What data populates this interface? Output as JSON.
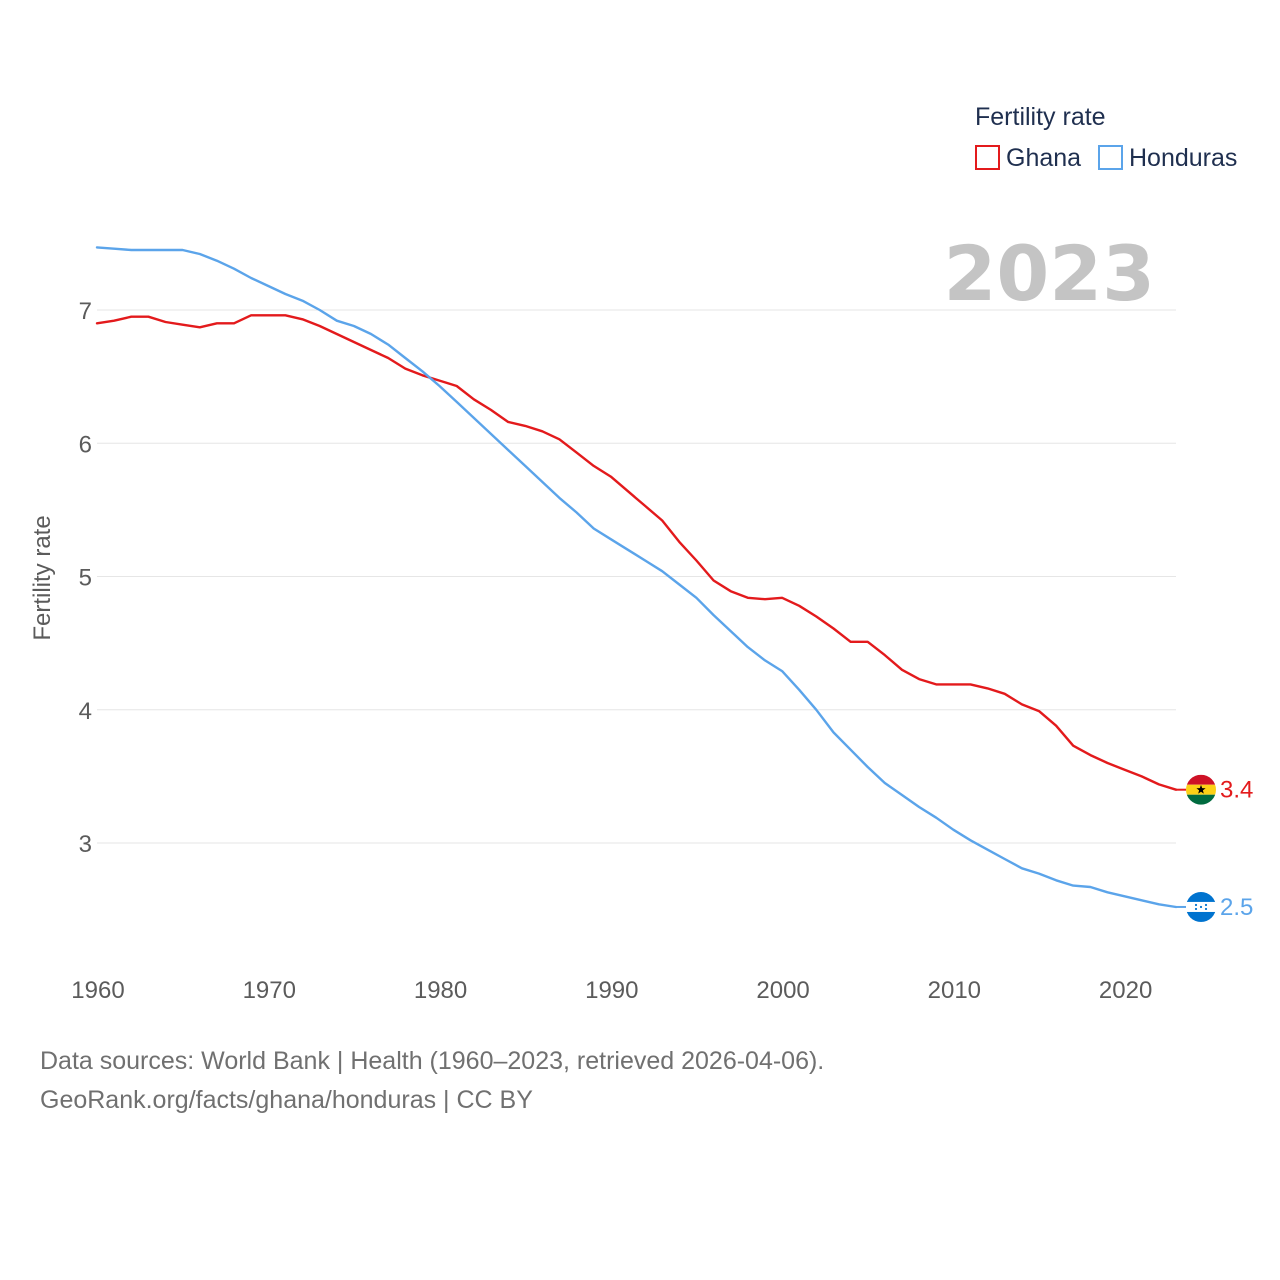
{
  "chart_data": {
    "type": "line",
    "title": "Fertility rate",
    "xlabel": "",
    "ylabel": "Fertility rate",
    "xlim": [
      1960,
      2023
    ],
    "ylim": [
      2.2,
      7.6
    ],
    "yticks": [
      3,
      4,
      5,
      6,
      7
    ],
    "yticks_labels": [
      "3",
      "4",
      "5",
      "6",
      "7"
    ],
    "xticks": [
      1960,
      1970,
      1980,
      1990,
      2000,
      2010,
      2020
    ],
    "xticks_labels": [
      "1960",
      "1970",
      "1980",
      "1990",
      "2000",
      "2010",
      "2020"
    ],
    "grid": true,
    "legend_title": "Fertility rate",
    "year_label": "2023",
    "x": [
      1960,
      1961,
      1962,
      1963,
      1964,
      1965,
      1966,
      1967,
      1968,
      1969,
      1970,
      1971,
      1972,
      1973,
      1974,
      1975,
      1976,
      1977,
      1978,
      1979,
      1980,
      1981,
      1982,
      1983,
      1984,
      1985,
      1986,
      1987,
      1988,
      1989,
      1990,
      1991,
      1992,
      1993,
      1994,
      1995,
      1996,
      1997,
      1998,
      1999,
      2000,
      2001,
      2002,
      2003,
      2004,
      2005,
      2006,
      2007,
      2008,
      2009,
      2010,
      2011,
      2012,
      2013,
      2014,
      2015,
      2016,
      2017,
      2018,
      2019,
      2020,
      2021,
      2022,
      2023
    ],
    "series": [
      {
        "name": "Ghana",
        "color": "#e31a1c",
        "end_label": "3.4",
        "flag": "ghana-flag",
        "values": [
          6.9,
          6.92,
          6.95,
          6.95,
          6.91,
          6.89,
          6.87,
          6.9,
          6.9,
          6.96,
          6.96,
          6.96,
          6.93,
          6.88,
          6.82,
          6.76,
          6.7,
          6.64,
          6.56,
          6.51,
          6.47,
          6.43,
          6.33,
          6.25,
          6.16,
          6.13,
          6.09,
          6.03,
          5.93,
          5.83,
          5.75,
          5.64,
          5.53,
          5.42,
          5.26,
          5.12,
          4.97,
          4.89,
          4.84,
          4.83,
          4.84,
          4.78,
          4.7,
          4.61,
          4.51,
          4.51,
          4.41,
          4.3,
          4.23,
          4.19,
          4.19,
          4.19,
          4.16,
          4.12,
          4.04,
          3.99,
          3.88,
          3.73,
          3.66,
          3.6,
          3.55,
          3.5,
          3.44,
          3.4
        ]
      },
      {
        "name": "Honduras",
        "color": "#5ba4ea",
        "end_label": "2.5",
        "flag": "honduras-flag",
        "values": [
          7.47,
          7.46,
          7.45,
          7.45,
          7.45,
          7.45,
          7.42,
          7.37,
          7.31,
          7.24,
          7.18,
          7.12,
          7.07,
          7.0,
          6.92,
          6.88,
          6.82,
          6.74,
          6.64,
          6.54,
          6.43,
          6.31,
          6.19,
          6.07,
          5.95,
          5.83,
          5.71,
          5.59,
          5.48,
          5.36,
          5.28,
          5.2,
          5.12,
          5.04,
          4.94,
          4.84,
          4.71,
          4.59,
          4.47,
          4.37,
          4.29,
          4.15,
          4.0,
          3.83,
          3.7,
          3.57,
          3.45,
          3.36,
          3.27,
          3.19,
          3.1,
          3.02,
          2.95,
          2.88,
          2.81,
          2.77,
          2.72,
          2.68,
          2.67,
          2.63,
          2.6,
          2.57,
          2.54,
          2.52
        ]
      }
    ]
  },
  "footer": {
    "line1": "Data sources: World Bank | Health (1960–2023, retrieved 2026-04-06).",
    "line2": "GeoRank.org/facts/ghana/honduras | CC BY"
  }
}
